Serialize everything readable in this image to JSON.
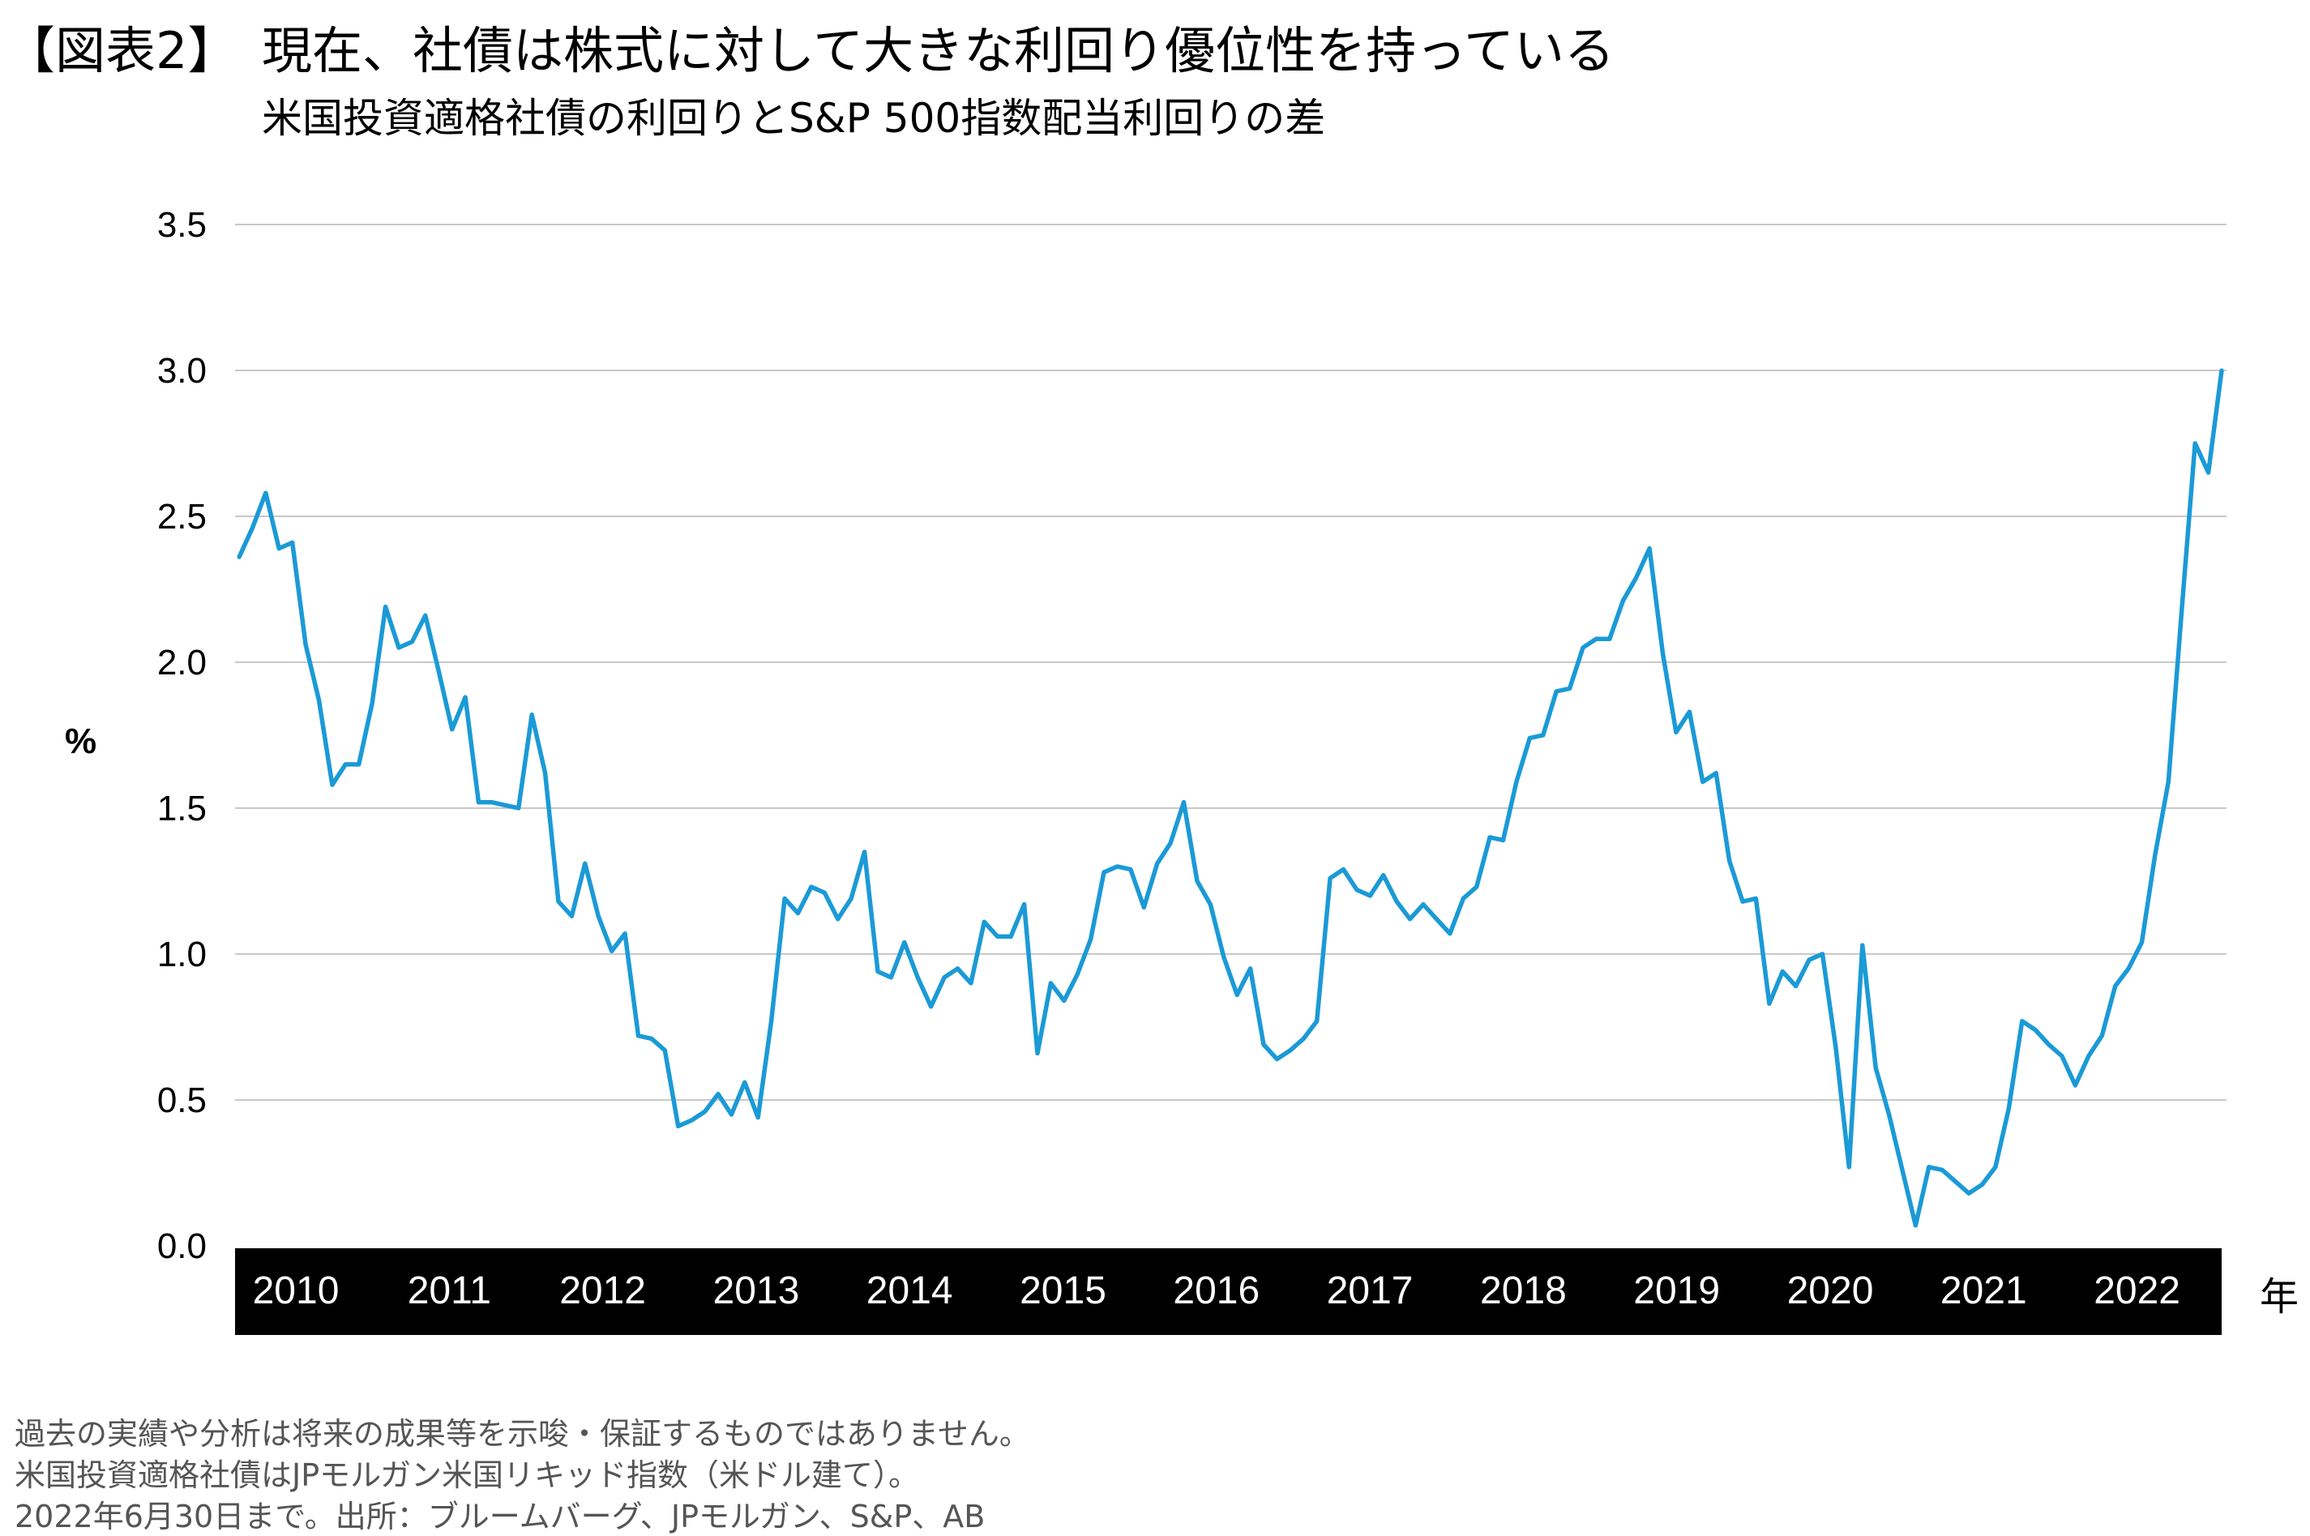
{
  "figure_label": "【図表2】",
  "footnotes": [
    "過去の実績や分析は将来の成果等を示唆・保証するものではありません。",
    "米国投資適格社債はJPモルガン米国リキッド指数（米ドル建て）。",
    "2022年6月30日まで。出所：ブルームバーグ、JPモルガン、S&P、AB"
  ],
  "colors": {
    "line": "#1b9ad6",
    "grid": "#c8c8c8",
    "axis_band": "#000000",
    "axis_band_text": "#ffffff"
  },
  "chart_data": {
    "type": "line",
    "title": "現在、社債は株式に対して大きな利回り優位性を持っている",
    "subtitle": "米国投資適格社債の利回りとS&P 500指数配当利回りの差",
    "ylabel": "%",
    "xlabel": "年",
    "ylim": [
      0,
      3.5
    ],
    "yticks": [
      "0.0",
      "0.5",
      "1.0",
      "1.5",
      "2.0",
      "2.5",
      "3.0",
      "3.5"
    ],
    "xticks": [
      "2010",
      "2011",
      "2012",
      "2013",
      "2014",
      "2015",
      "2016",
      "2017",
      "2018",
      "2019",
      "2020",
      "2021",
      "2022"
    ],
    "grid": "horizontal",
    "legend": "none",
    "x": [
      "2010-01",
      "2010-02",
      "2010-03",
      "2010-04",
      "2010-05",
      "2010-06",
      "2010-07",
      "2010-08",
      "2010-09",
      "2010-10",
      "2010-11",
      "2010-12",
      "2011-01",
      "2011-02",
      "2011-03",
      "2011-04",
      "2011-05",
      "2011-06",
      "2011-07",
      "2011-08",
      "2011-09",
      "2011-10",
      "2011-11",
      "2011-12",
      "2012-01",
      "2012-02",
      "2012-03",
      "2012-04",
      "2012-05",
      "2012-06",
      "2012-07",
      "2012-08",
      "2012-09",
      "2012-10",
      "2012-11",
      "2012-12",
      "2013-01",
      "2013-02",
      "2013-03",
      "2013-04",
      "2013-05",
      "2013-06",
      "2013-07",
      "2013-08",
      "2013-09",
      "2013-10",
      "2013-11",
      "2013-12",
      "2014-01",
      "2014-02",
      "2014-03",
      "2014-04",
      "2014-05",
      "2014-06",
      "2014-07",
      "2014-08",
      "2014-09",
      "2014-10",
      "2014-11",
      "2014-12",
      "2015-01",
      "2015-02",
      "2015-03",
      "2015-04",
      "2015-05",
      "2015-06",
      "2015-07",
      "2015-08",
      "2015-09",
      "2015-10",
      "2015-11",
      "2015-12",
      "2016-01",
      "2016-02",
      "2016-03",
      "2016-04",
      "2016-05",
      "2016-06",
      "2016-07",
      "2016-08",
      "2016-09",
      "2016-10",
      "2016-11",
      "2016-12",
      "2017-01",
      "2017-02",
      "2017-03",
      "2017-04",
      "2017-05",
      "2017-06",
      "2017-07",
      "2017-08",
      "2017-09",
      "2017-10",
      "2017-11",
      "2017-12",
      "2018-01",
      "2018-02",
      "2018-03",
      "2018-04",
      "2018-05",
      "2018-06",
      "2018-07",
      "2018-08",
      "2018-09",
      "2018-10",
      "2018-11",
      "2018-12",
      "2019-01",
      "2019-02",
      "2019-03",
      "2019-04",
      "2019-05",
      "2019-06",
      "2019-07",
      "2019-08",
      "2019-09",
      "2019-10",
      "2019-11",
      "2019-12",
      "2020-01",
      "2020-02",
      "2020-03",
      "2020-04",
      "2020-05",
      "2020-06",
      "2020-07",
      "2020-08",
      "2020-09",
      "2020-10",
      "2020-11",
      "2020-12",
      "2021-01",
      "2021-02",
      "2021-03",
      "2021-04",
      "2021-05",
      "2021-06",
      "2021-07",
      "2021-08",
      "2021-09",
      "2021-10",
      "2021-11",
      "2021-12",
      "2022-01",
      "2022-02",
      "2022-03",
      "2022-04",
      "2022-05",
      "2022-06"
    ],
    "values": [
      2.36,
      2.46,
      2.58,
      2.39,
      2.41,
      2.06,
      1.87,
      1.58,
      1.65,
      1.65,
      1.86,
      2.19,
      2.05,
      2.07,
      2.16,
      1.97,
      1.77,
      1.88,
      1.52,
      1.52,
      1.51,
      1.5,
      1.82,
      1.62,
      1.18,
      1.13,
      1.31,
      1.13,
      1.01,
      1.07,
      0.72,
      0.71,
      0.67,
      0.41,
      0.43,
      0.46,
      0.52,
      0.45,
      0.56,
      0.44,
      0.77,
      1.19,
      1.14,
      1.23,
      1.21,
      1.12,
      1.19,
      1.35,
      0.94,
      0.92,
      1.04,
      0.92,
      0.82,
      0.92,
      0.95,
      0.9,
      1.11,
      1.06,
      1.06,
      1.17,
      0.66,
      0.9,
      0.84,
      0.93,
      1.05,
      1.28,
      1.3,
      1.29,
      1.16,
      1.31,
      1.38,
      1.52,
      1.25,
      1.17,
      0.99,
      0.86,
      0.95,
      0.69,
      0.64,
      0.67,
      0.71,
      0.77,
      1.26,
      1.29,
      1.22,
      1.2,
      1.27,
      1.18,
      1.12,
      1.17,
      1.12,
      1.07,
      1.19,
      1.23,
      1.4,
      1.39,
      1.59,
      1.74,
      1.75,
      1.9,
      1.91,
      2.05,
      2.08,
      2.08,
      2.21,
      2.29,
      2.39,
      2.03,
      1.76,
      1.83,
      1.59,
      1.62,
      1.32,
      1.18,
      1.19,
      0.83,
      0.94,
      0.89,
      0.98,
      1.0,
      0.68,
      0.27,
      1.03,
      0.61,
      0.45,
      0.26,
      0.07,
      0.27,
      0.26,
      0.22,
      0.18,
      0.21,
      0.27,
      0.47,
      0.77,
      0.74,
      0.69,
      0.65,
      0.55,
      0.65,
      0.72,
      0.89,
      0.95,
      1.04,
      1.34,
      1.59,
      2.18,
      2.75,
      2.65,
      3.0
    ]
  }
}
